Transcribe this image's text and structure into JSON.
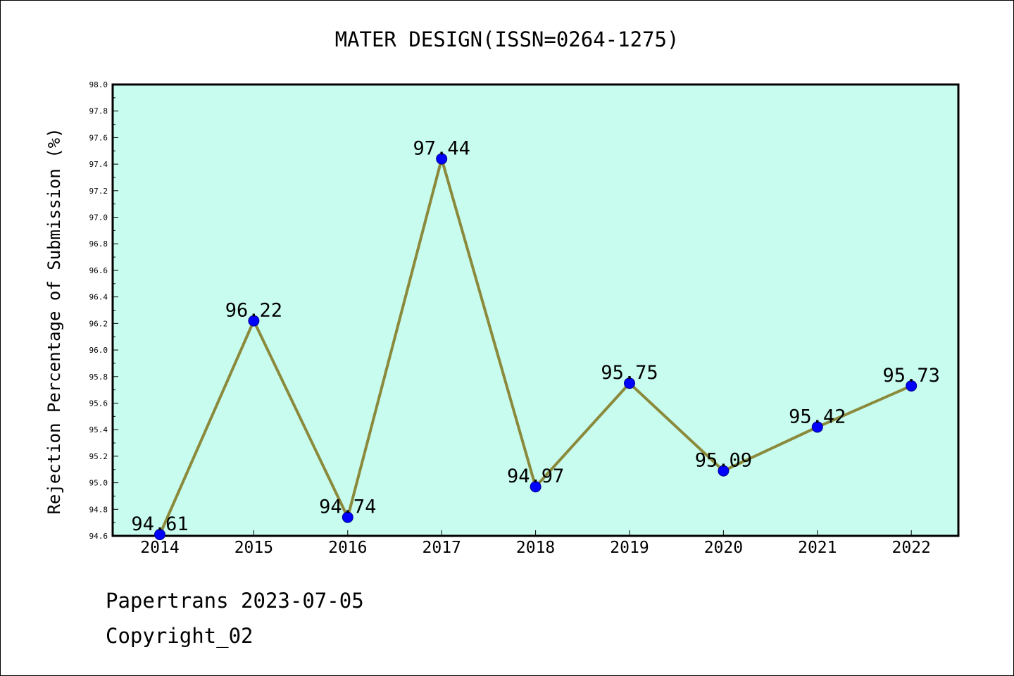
{
  "chart_data": {
    "type": "line",
    "title": "MATER DESIGN(ISSN=0264-1275)",
    "ylabel": "Rejection Percentage of Submission (%)",
    "xlabel": "",
    "categories": [
      "2014",
      "2015",
      "2016",
      "2017",
      "2018",
      "2019",
      "2020",
      "2021",
      "2022"
    ],
    "values": [
      94.61,
      96.22,
      94.74,
      97.44,
      94.97,
      95.75,
      95.09,
      95.42,
      95.73
    ],
    "data_labels": [
      "94.61",
      "96.22",
      "94.74",
      "97.44",
      "94.97",
      "95.75",
      "95.09",
      "95.42",
      "95.73"
    ],
    "ylim": [
      94.6,
      98.0
    ],
    "y_ticks": [
      "94.6",
      "94.8",
      "95.0",
      "95.2",
      "95.4",
      "95.6",
      "95.8",
      "96.0",
      "96.2",
      "96.4",
      "96.6",
      "96.8",
      "97.0",
      "97.2",
      "97.4",
      "97.6",
      "97.8",
      "98.0"
    ],
    "grid": false,
    "colors": {
      "plot_background": "#c8fcee",
      "line": "#8b8a3c",
      "marker": "#0000ff"
    }
  },
  "footer": {
    "source": "Papertrans 2023-07-05",
    "copyright": "Copyright_02"
  }
}
